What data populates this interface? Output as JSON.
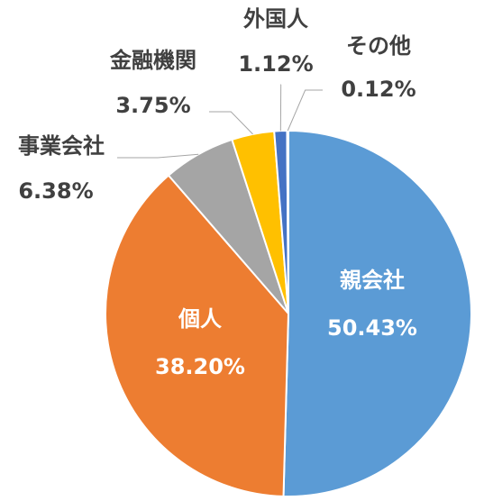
{
  "chart_data": {
    "type": "pie",
    "categories": [
      "親会社",
      "個人",
      "事業会社",
      "金融機関",
      "外国人",
      "その他"
    ],
    "values": [
      50.43,
      38.2,
      6.38,
      3.75,
      1.12,
      0.12
    ],
    "value_labels": [
      "50.43%",
      "38.20%",
      "6.38%",
      "3.75%",
      "1.12%",
      "0.12%"
    ],
    "colors": [
      "#5b9bd5",
      "#ed7d31",
      "#a5a5a5",
      "#ffc000",
      "#4472c4",
      "#70ad47"
    ]
  }
}
